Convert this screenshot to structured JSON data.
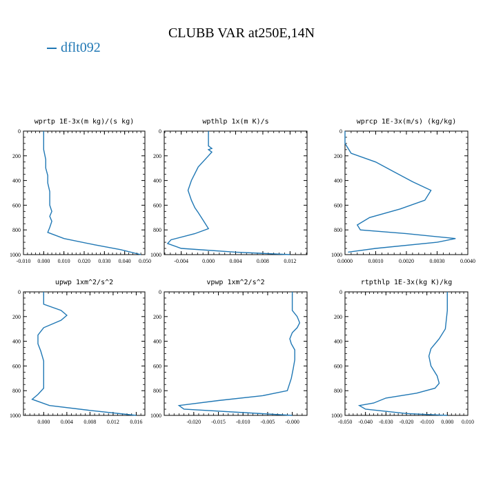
{
  "title": "CLUBB VAR at250E,14N",
  "legend": {
    "label": "dflt092",
    "color": "#1f77b4"
  },
  "chart_data": [
    {
      "type": "line",
      "title": "wprtp  1E-3x(m kg)/(s kg)",
      "xlim": [
        -0.01,
        0.05
      ],
      "ylim": [
        1000,
        0
      ],
      "xticks": [
        "-0.010",
        "0.000",
        "0.010",
        "0.020",
        "0.030",
        "0.040",
        "0.050"
      ],
      "xtick_values": [
        -0.01,
        0.0,
        0.01,
        0.02,
        0.03,
        0.04,
        0.05
      ],
      "yticks": [
        "0",
        "200",
        "400",
        "600",
        "800",
        "1000"
      ],
      "series": [
        {
          "x": [
            0.0,
            0.0,
            0.001,
            0.001,
            0.002,
            0.002,
            0.003,
            0.003,
            0.003,
            0.004,
            0.003,
            0.004,
            0.003,
            0.002,
            0.01,
            0.025,
            0.038,
            0.048
          ],
          "y": [
            0,
            150,
            230,
            300,
            360,
            420,
            490,
            550,
            600,
            650,
            690,
            730,
            780,
            820,
            870,
            920,
            960,
            1000
          ]
        }
      ]
    },
    {
      "type": "line",
      "title": "wpthlp  1x(m K)/s",
      "xlim": [
        -0.0065,
        0.0145
      ],
      "ylim": [
        1000,
        0
      ],
      "xticks": [
        "-0.004",
        "0.000",
        "0.004",
        "0.008",
        "0.012"
      ],
      "xtick_values": [
        -0.004,
        0.0,
        0.004,
        0.008,
        0.012
      ],
      "yticks": [
        "0",
        "200",
        "400",
        "600",
        "800",
        "1000"
      ],
      "series": [
        {
          "x": [
            0.0,
            0.0,
            0.0005,
            0.0,
            0.0005,
            0.0,
            -0.0015,
            -0.0025,
            -0.003,
            -0.0025,
            -0.002,
            -0.0015,
            -0.0008,
            0.0,
            -0.002,
            -0.0055,
            -0.006,
            -0.004,
            0.004,
            0.012
          ],
          "y": [
            0,
            120,
            140,
            150,
            170,
            200,
            290,
            400,
            480,
            560,
            620,
            660,
            720,
            790,
            830,
            880,
            910,
            950,
            980,
            1000
          ]
        }
      ]
    },
    {
      "type": "line",
      "title": "wprcp  1E-3x(m/s) (kg/kg)",
      "xlim": [
        0.0,
        0.004
      ],
      "ylim": [
        1000,
        0
      ],
      "xticks": [
        "0.0000",
        "0.0010",
        "0.0020",
        "0.0030",
        "0.0040"
      ],
      "xtick_values": [
        0.0,
        0.001,
        0.002,
        0.003,
        0.004
      ],
      "yticks": [
        "0",
        "200",
        "400",
        "600",
        "800",
        "1000"
      ],
      "series": [
        {
          "x": [
            0.0,
            0.0,
            0.0002,
            0.001,
            0.0016,
            0.0022,
            0.0028,
            0.0026,
            0.0018,
            0.0008,
            0.0004,
            0.0005,
            0.002,
            0.0036,
            0.003,
            0.001,
            0.0001
          ],
          "y": [
            0,
            100,
            180,
            250,
            330,
            410,
            480,
            560,
            630,
            700,
            760,
            800,
            830,
            870,
            900,
            950,
            980
          ]
        }
      ]
    },
    {
      "type": "line",
      "title": "upwp  1xm^2/s^2",
      "xlim": [
        -0.0035,
        0.0175
      ],
      "ylim": [
        1000,
        0
      ],
      "xticks": [
        "0.000",
        "0.004",
        "0.008",
        "0.012",
        "0.016"
      ],
      "xtick_values": [
        0.0,
        0.004,
        0.008,
        0.012,
        0.016
      ],
      "yticks": [
        "0",
        "200",
        "400",
        "600",
        "800",
        "1000"
      ],
      "series": [
        {
          "x": [
            0.0,
            0.0,
            0.003,
            0.004,
            0.003,
            0.0,
            -0.001,
            -0.001,
            -0.0005,
            0.0,
            0.0,
            0.0,
            0.0,
            -0.001,
            -0.002,
            0.001,
            0.008,
            0.016
          ],
          "y": [
            0,
            100,
            150,
            190,
            230,
            290,
            350,
            420,
            480,
            560,
            620,
            700,
            780,
            830,
            870,
            920,
            960,
            1000
          ]
        }
      ]
    },
    {
      "type": "line",
      "title": "vpwp  1xm^2/s^2",
      "xlim": [
        -0.026,
        0.003
      ],
      "ylim": [
        1000,
        0
      ],
      "xticks": [
        "-0.020",
        "-0.015",
        "-0.010",
        "-0.005",
        "-0.000"
      ],
      "xtick_values": [
        -0.02,
        -0.015,
        -0.01,
        -0.005,
        0.0
      ],
      "yticks": [
        "0",
        "200",
        "400",
        "600",
        "800",
        "1000"
      ],
      "series": [
        {
          "x": [
            0.0,
            0.0,
            0.001,
            0.0015,
            0.001,
            0.0,
            -0.0005,
            -0.0002,
            0.0005,
            0.0005,
            0.0002,
            -0.0002,
            -0.001,
            -0.006,
            -0.015,
            -0.023,
            -0.022,
            0.0
          ],
          "y": [
            0,
            150,
            200,
            250,
            290,
            330,
            380,
            420,
            470,
            550,
            620,
            700,
            800,
            840,
            880,
            920,
            950,
            1000
          ]
        }
      ]
    },
    {
      "type": "line",
      "title": "rtpthlp  1E-3x(kg K)/kg",
      "xlim": [
        -0.05,
        0.01
      ],
      "ylim": [
        1000,
        0
      ],
      "xticks": [
        "-0.050",
        "-0.040",
        "-0.030",
        "-0.020",
        "-0.010",
        "0.000",
        "0.010"
      ],
      "xtick_values": [
        -0.05,
        -0.04,
        -0.03,
        -0.02,
        -0.01,
        0.0,
        0.01
      ],
      "yticks": [
        "0",
        "200",
        "400",
        "600",
        "800",
        "1000"
      ],
      "series": [
        {
          "x": [
            0.0,
            0.0,
            -0.001,
            -0.004,
            -0.008,
            -0.009,
            -0.008,
            -0.005,
            -0.004,
            -0.006,
            -0.015,
            -0.03,
            -0.036,
            -0.043,
            -0.04,
            -0.02,
            0.0
          ],
          "y": [
            0,
            150,
            300,
            380,
            460,
            520,
            600,
            680,
            740,
            780,
            820,
            860,
            900,
            920,
            950,
            985,
            1000
          ]
        }
      ]
    }
  ]
}
